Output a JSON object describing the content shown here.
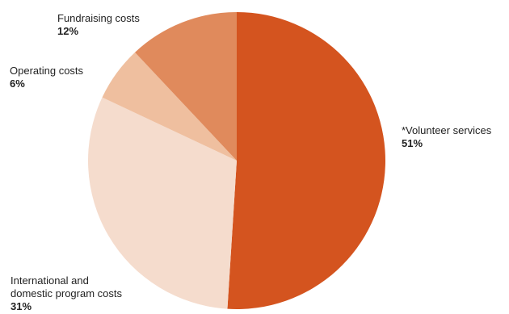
{
  "chart_data": {
    "type": "pie",
    "title": "",
    "start_angle_deg": 0,
    "direction": "clockwise",
    "slices": [
      {
        "label": "*Volunteer services",
        "value": 51,
        "value_label": "51%",
        "color": "#d4541f"
      },
      {
        "label": "International and\ndomestic program costs",
        "value": 31,
        "value_label": "31%",
        "color": "#f5dccd"
      },
      {
        "label": "Operating costs",
        "value": 6,
        "value_label": "6%",
        "color": "#efbf9f"
      },
      {
        "label": "Fundraising costs",
        "value": 12,
        "value_label": "12%",
        "color": "#e08a5c"
      }
    ]
  }
}
